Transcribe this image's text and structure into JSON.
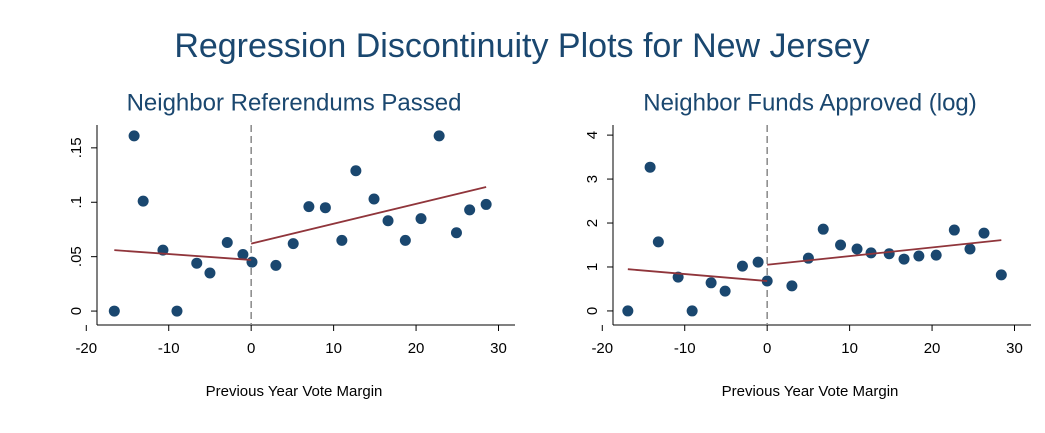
{
  "title": "Regression Discontinuity Plots for New Jersey",
  "chart_data": [
    {
      "type": "scatter",
      "title": "Neighbor Referendums Passed",
      "xlabel": "Previous Year Vote Margin",
      "color": "#1a476f",
      "fit_color": "#90353b",
      "cutoff": 0,
      "x": [
        -16.6,
        -14.2,
        -13.1,
        -10.7,
        -9.0,
        -6.6,
        -5.0,
        -2.9,
        -1.0,
        0.1,
        3.0,
        5.1,
        7.0,
        9.0,
        11.0,
        12.7,
        14.9,
        16.6,
        18.7,
        20.6,
        22.8,
        24.9,
        26.5,
        28.5
      ],
      "y": [
        0,
        0.161,
        0.101,
        0.056,
        0,
        0.044,
        0.035,
        0.063,
        0.052,
        0.045,
        0.042,
        0.062,
        0.096,
        0.095,
        0.065,
        0.129,
        0.103,
        0.083,
        0.065,
        0.085,
        0.161,
        0.072,
        0.093,
        0.098
      ],
      "fit_lines": [
        {
          "x": [
            -16.6,
            0
          ],
          "y": [
            0.056,
            0.047
          ]
        },
        {
          "x": [
            0,
            28.5
          ],
          "y": [
            0.062,
            0.114
          ]
        }
      ],
      "xlim": [
        -18.7,
        32.0
      ],
      "ylim": [
        -0.0128,
        0.171
      ],
      "xticks": [
        -20,
        -10,
        0,
        10,
        20,
        30
      ],
      "yticks": [
        0,
        {
          "value": 0.05,
          "label": ".05"
        },
        {
          "value": 0.1,
          "label": ".1"
        },
        {
          "value": 0.15,
          "label": ".15"
        }
      ]
    },
    {
      "type": "scatter",
      "title": "Neighbor Funds Approved (log)",
      "xlabel": "Previous Year Vote Margin",
      "color": "#1a476f",
      "fit_color": "#90353b",
      "cutoff": 0,
      "x": [
        -16.9,
        -14.2,
        -13.2,
        -10.8,
        -9.1,
        -6.8,
        -5.1,
        -3.0,
        -1.1,
        0,
        3.0,
        5.0,
        6.8,
        8.9,
        10.9,
        12.6,
        14.8,
        16.6,
        18.4,
        20.5,
        22.7,
        24.6,
        26.3,
        28.4
      ],
      "y": [
        0,
        3.27,
        1.57,
        0.77,
        0,
        0.64,
        0.45,
        1.02,
        1.11,
        0.68,
        0.57,
        1.2,
        1.86,
        1.5,
        1.41,
        1.32,
        1.3,
        1.18,
        1.25,
        1.27,
        1.84,
        1.41,
        1.77,
        0.82
      ],
      "fit_lines": [
        {
          "x": [
            -16.9,
            0
          ],
          "y": [
            0.95,
            0.68
          ]
        },
        {
          "x": [
            0,
            28.4
          ],
          "y": [
            1.05,
            1.61
          ]
        }
      ],
      "xlim": [
        -18.7,
        32.0
      ],
      "ylim": [
        -0.32,
        4.23
      ],
      "xticks": [
        -20,
        -10,
        0,
        10,
        20,
        30
      ],
      "yticks": [
        0,
        1,
        2,
        3,
        4
      ]
    }
  ]
}
